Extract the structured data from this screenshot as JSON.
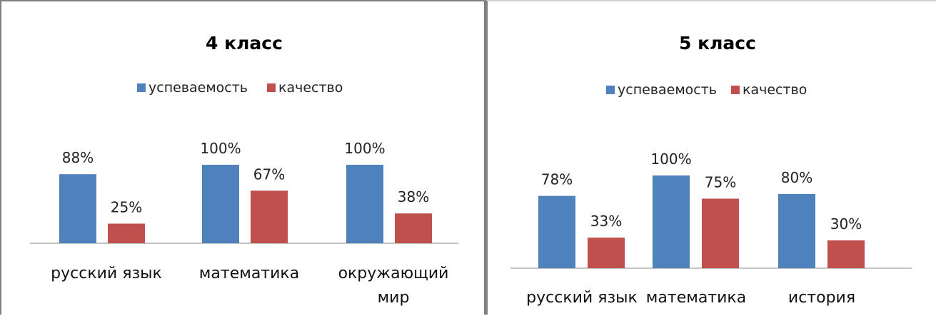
{
  "chart_data": [
    {
      "type": "bar",
      "title": "4 класс",
      "categories": [
        [
          "русский язык"
        ],
        [
          "математика"
        ],
        [
          "окружающий",
          "мир"
        ]
      ],
      "series": [
        {
          "name": "успеваемость",
          "color": "#4F81BD",
          "values": [
            88,
            100,
            100
          ],
          "labels": [
            "88%",
            "100%",
            "100%"
          ]
        },
        {
          "name": "качество",
          "color": "#C0504D",
          "values": [
            25,
            67,
            38
          ],
          "labels": [
            "25%",
            "67%",
            "38%"
          ]
        }
      ],
      "ylim": [
        0,
        100
      ],
      "legend": "top",
      "grid": false
    },
    {
      "type": "bar",
      "title": "5 класс",
      "categories": [
        [
          "русский язык"
        ],
        [
          "математика"
        ],
        [
          "история"
        ]
      ],
      "series": [
        {
          "name": "успеваемость",
          "color": "#4F81BD",
          "values": [
            78,
            100,
            80
          ],
          "labels": [
            "78%",
            "100%",
            "80%"
          ]
        },
        {
          "name": "качество",
          "color": "#C0504D",
          "values": [
            33,
            75,
            30
          ],
          "labels": [
            "33%",
            "75%",
            "30%"
          ]
        }
      ],
      "ylim": [
        0,
        100
      ],
      "legend": "top",
      "grid": false
    }
  ]
}
